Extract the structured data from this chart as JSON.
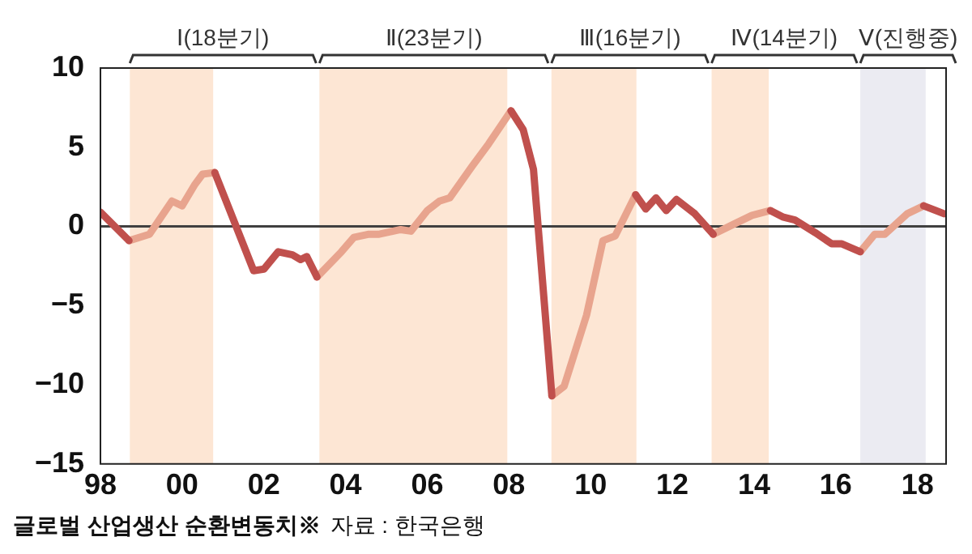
{
  "chart_data": {
    "type": "line",
    "x": [
      1998.0,
      1998.7,
      1999.2,
      1999.75,
      2000.0,
      2000.3,
      2000.5,
      2000.8,
      2001.75,
      2002.0,
      2002.35,
      2002.7,
      2002.9,
      2003.05,
      2003.3,
      2003.9,
      2004.2,
      2004.55,
      2004.8,
      2005.35,
      2005.6,
      2006.0,
      2006.3,
      2006.55,
      2007.1,
      2007.5,
      2008.05,
      2008.35,
      2008.6,
      2009.05,
      2009.35,
      2009.9,
      2010.3,
      2010.6,
      2011.1,
      2011.35,
      2011.6,
      2011.85,
      2012.1,
      2012.55,
      2013.0,
      2013.55,
      2013.95,
      2014.4,
      2014.7,
      2015.0,
      2015.5,
      2015.9,
      2016.15,
      2016.6,
      2016.95,
      2017.2,
      2017.75,
      2018.15,
      2018.65
    ],
    "series": [
      {
        "color": "#c0504d",
        "values": [
          0.9,
          -0.9,
          null,
          null,
          null,
          null,
          null,
          3.4,
          -2.8,
          -2.7,
          -1.6,
          -1.8,
          -2.1,
          -1.9,
          -3.2,
          null,
          null,
          null,
          null,
          null,
          null,
          null,
          null,
          null,
          null,
          null,
          7.3,
          6.1,
          3.6,
          -10.7,
          null,
          null,
          null,
          null,
          2.0,
          1.1,
          1.8,
          1.0,
          1.7,
          0.8,
          -0.5,
          null,
          null,
          1.0,
          0.6,
          0.4,
          -0.4,
          -1.1,
          -1.1,
          -1.6,
          null,
          null,
          null,
          1.3,
          0.8
        ]
      },
      {
        "color": "#e8a48e",
        "values": [
          null,
          -0.9,
          -0.5,
          1.6,
          1.3,
          2.6,
          3.3,
          3.4,
          null,
          null,
          null,
          null,
          null,
          null,
          -3.2,
          -1.6,
          -0.7,
          -0.5,
          -0.5,
          -0.2,
          -0.3,
          1.0,
          1.6,
          1.8,
          3.8,
          5.2,
          7.3,
          null,
          null,
          -10.7,
          -10.1,
          -5.6,
          -0.9,
          -0.6,
          2.0,
          null,
          null,
          null,
          null,
          null,
          -0.5,
          0.2,
          0.7,
          1.0,
          null,
          null,
          null,
          null,
          null,
          -1.6,
          -0.5,
          -0.5,
          0.8,
          1.3,
          null
        ]
      }
    ],
    "xlim": [
      1998,
      2018.7
    ],
    "xticks": [
      {
        "value": 1998,
        "label": "98"
      },
      {
        "value": 2000,
        "label": "00"
      },
      {
        "value": 2002,
        "label": "02"
      },
      {
        "value": 2004,
        "label": "04"
      },
      {
        "value": 2006,
        "label": "06"
      },
      {
        "value": 2008,
        "label": "08"
      },
      {
        "value": 2010,
        "label": "10"
      },
      {
        "value": 2012,
        "label": "12"
      },
      {
        "value": 2014,
        "label": "14"
      },
      {
        "value": 2016,
        "label": "16"
      },
      {
        "value": 2018,
        "label": "18"
      }
    ],
    "ylim": [
      -15,
      10
    ],
    "yticks": [
      -15,
      -10,
      -5,
      0,
      5,
      10
    ],
    "grid": false,
    "legend": false,
    "marker": "none",
    "line_style": "solid",
    "bands": [
      {
        "axis": "x",
        "from": 1998.72,
        "to": 2000.76,
        "label": "Ⅰ(18분기)",
        "color": "#fde6d4"
      },
      {
        "axis": "x",
        "from": 2003.36,
        "to": 2007.96,
        "label": "Ⅱ(23분기)",
        "color": "#fde6d4"
      },
      {
        "axis": "x",
        "from": 2009.04,
        "to": 2011.12,
        "label": "Ⅲ(16분기)",
        "color": "#fde6d4"
      },
      {
        "axis": "x",
        "from": 2012.96,
        "to": 2014.36,
        "label": "Ⅳ(14분기)",
        "color": "#fde6d4"
      },
      {
        "axis": "x",
        "from": 2016.6,
        "to": 2018.2,
        "label": "Ⅴ(진행중)",
        "color": "#ebebf2"
      }
    ],
    "ref_lines": [
      {
        "axis": "y",
        "value": 0,
        "color": "#404040"
      }
    ],
    "annotations": [
      "글로벌 산업생산 순환변동치※",
      "자료 : 한국은행"
    ]
  }
}
